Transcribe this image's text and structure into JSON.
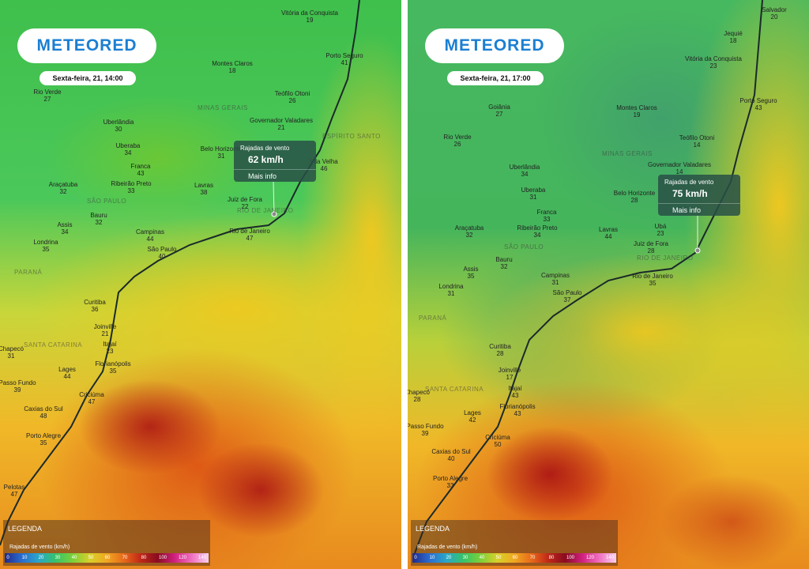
{
  "panels": [
    {
      "logo": "METEORED",
      "time": "Sexta-feira, 21, 14:00",
      "popup": {
        "title": "Rajadas de vento",
        "value": "62 km/h",
        "link": "Mais info"
      },
      "regions": [
        "MINAS GERAIS",
        "ESPÍRITO SANTO",
        "RIO DE JANEIRO",
        "SÃO PAULO",
        "PARANÁ",
        "SANTA CATARINA"
      ],
      "cities": [
        {
          "name": "Vitória da Conquista",
          "value": 19
        },
        {
          "name": "Montes Claros",
          "value": 18
        },
        {
          "name": "Porto Seguro",
          "value": 41
        },
        {
          "name": "Rio Verde",
          "value": 27
        },
        {
          "name": "Teófilo Otoni",
          "value": 26
        },
        {
          "name": "Uberlândia",
          "value": 30
        },
        {
          "name": "Governador Valadares",
          "value": 21
        },
        {
          "name": "Uberaba",
          "value": 34
        },
        {
          "name": "Belo Horizonte",
          "value": 31
        },
        {
          "name": "Franca",
          "value": 43
        },
        {
          "name": "Vila Velha",
          "value": 46
        },
        {
          "name": "Araçatuba",
          "value": 32
        },
        {
          "name": "Ribeirão Preto",
          "value": 33
        },
        {
          "name": "Lavras",
          "value": 38
        },
        {
          "name": "Juiz de Fora",
          "value": 22
        },
        {
          "name": "Bauru",
          "value": 32
        },
        {
          "name": "Assis",
          "value": 34
        },
        {
          "name": "Campinas",
          "value": 44
        },
        {
          "name": "Rio de Janeiro",
          "value": 47
        },
        {
          "name": "Londrina",
          "value": 35
        },
        {
          "name": "São Paulo",
          "value": 40
        },
        {
          "name": "Curitiba",
          "value": 36
        },
        {
          "name": "Joinville",
          "value": 21
        },
        {
          "name": "Itajaí",
          "value": 23
        },
        {
          "name": "Chapecó",
          "value": 31
        },
        {
          "name": "Florianópolis",
          "value": 35
        },
        {
          "name": "Lages",
          "value": 44
        },
        {
          "name": "Passo Fundo",
          "value": 39
        },
        {
          "name": "Criciúma",
          "value": 47
        },
        {
          "name": "Caxias do Sul",
          "value": 48
        },
        {
          "name": "Porto Alegre",
          "value": 35
        },
        {
          "name": "Pelotas",
          "value": 47
        }
      ],
      "legend": {
        "title": "LEGENDA",
        "label": "Rajadas de vento (km/h)",
        "ticks": [
          0,
          10,
          20,
          30,
          40,
          50,
          60,
          70,
          80,
          100,
          120,
          140
        ]
      }
    },
    {
      "logo": "METEORED",
      "time": "Sexta-feira, 21, 17:00",
      "popup": {
        "title": "Rajadas de vento",
        "value": "75 km/h",
        "link": "Mais info"
      },
      "regions": [
        "MINAS GERAIS",
        "RIO DE JANEIRO",
        "SÃO PAULO",
        "PARANÁ",
        "SANTA CATARINA"
      ],
      "cities": [
        {
          "name": "Salvador",
          "value": 20
        },
        {
          "name": "Jequié",
          "value": 18
        },
        {
          "name": "Vitória da Conquista",
          "value": 23
        },
        {
          "name": "Porto Seguro",
          "value": 43
        },
        {
          "name": "Goiânia",
          "value": 27
        },
        {
          "name": "Montes Claros",
          "value": 19
        },
        {
          "name": "Rio Verde",
          "value": 26
        },
        {
          "name": "Teófilo Otoni",
          "value": 14
        },
        {
          "name": "Governador Valadares",
          "value": 14
        },
        {
          "name": "Uberlândia",
          "value": 34
        },
        {
          "name": "Uberaba",
          "value": 31
        },
        {
          "name": "Belo Horizonte",
          "value": 28
        },
        {
          "name": "Franca",
          "value": 33
        },
        {
          "name": "Ubá",
          "value": 23
        },
        {
          "name": "Araçatuba",
          "value": 32
        },
        {
          "name": "Ribeirão Preto",
          "value": 34
        },
        {
          "name": "Lavras",
          "value": 44
        },
        {
          "name": "Juiz de Fora",
          "value": 28
        },
        {
          "name": "Rio de Janeiro",
          "value": 35
        },
        {
          "name": "Assis",
          "value": 35
        },
        {
          "name": "Bauru",
          "value": 32
        },
        {
          "name": "Campinas",
          "value": 31
        },
        {
          "name": "Londrina",
          "value": 31
        },
        {
          "name": "São Paulo",
          "value": 37
        },
        {
          "name": "Curitiba",
          "value": 28
        },
        {
          "name": "Joinville",
          "value": 17
        },
        {
          "name": "Itajaí",
          "value": 43
        },
        {
          "name": "Chapecó",
          "value": 28
        },
        {
          "name": "Florianópolis",
          "value": 43
        },
        {
          "name": "Lages",
          "value": 42
        },
        {
          "name": "Passo Fundo",
          "value": 39
        },
        {
          "name": "Criciúma",
          "value": 50
        },
        {
          "name": "Caxias do Sul",
          "value": 40
        },
        {
          "name": "Porto Alegre",
          "value": 33
        }
      ],
      "legend": {
        "title": "LEGENDA",
        "label": "Rajadas de vento (km/h)",
        "ticks": [
          0,
          10,
          20,
          30,
          40,
          50,
          60,
          70,
          80,
          100,
          120,
          140
        ]
      }
    }
  ]
}
